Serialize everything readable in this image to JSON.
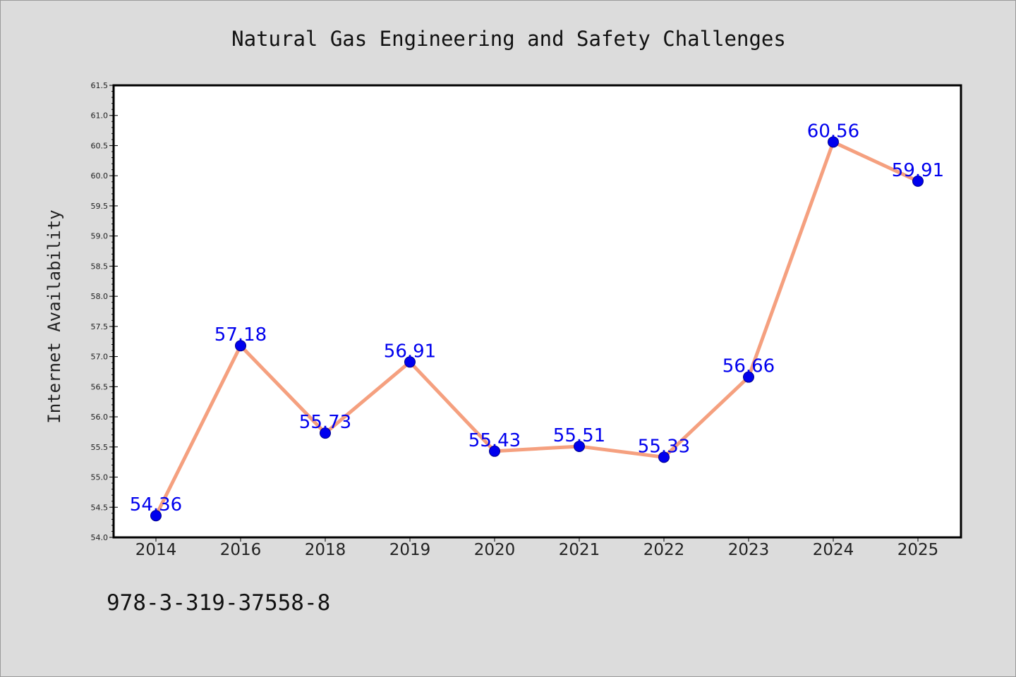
{
  "chart_data": {
    "type": "line",
    "title": "Natural Gas Engineering and Safety Challenges",
    "xlabel": "",
    "ylabel": "Internet Availability",
    "categories": [
      "2014",
      "2016",
      "2018",
      "2019",
      "2020",
      "2021",
      "2022",
      "2023",
      "2024",
      "2025"
    ],
    "series": [
      {
        "values": [
          54.36,
          57.18,
          55.73,
          56.91,
          55.43,
          55.51,
          55.33,
          56.66,
          60.56,
          59.91
        ],
        "data_labels": [
          "54.36",
          "57.18",
          "55.73",
          "56.91",
          "55.43",
          "55.51",
          "55.33",
          "56.66",
          "60.56",
          "59.91"
        ]
      }
    ],
    "ylim": [
      54.0,
      61.5
    ],
    "yticks": [
      "54.0",
      "54.5",
      "55.0",
      "55.5",
      "56.0",
      "56.5",
      "57.0",
      "57.5",
      "58.0",
      "58.5",
      "59.0",
      "59.5",
      "60.0",
      "60.5",
      "61.0",
      "61.5"
    ],
    "grid": false,
    "line_color": "#f5a07f",
    "marker_color": "#0000ee",
    "data_label_color": "#0000ee",
    "background_color": "#dcdcdc",
    "plot_background_color": "#ffffff"
  },
  "footnote": "978-3-319-37558-8"
}
